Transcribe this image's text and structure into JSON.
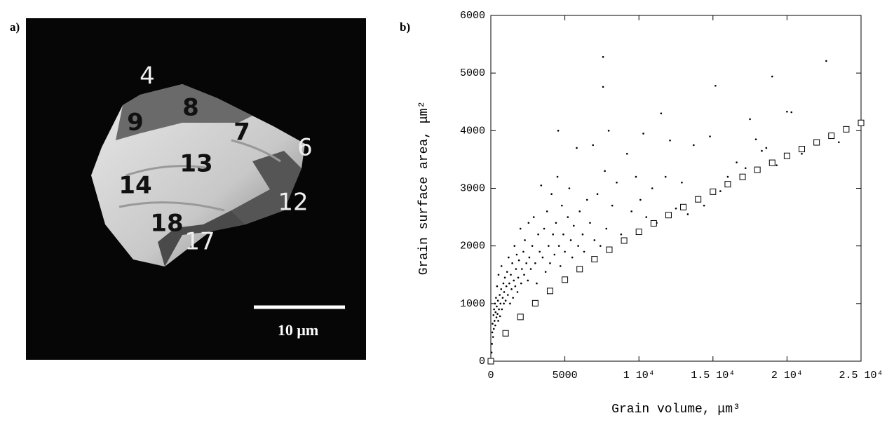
{
  "figure": {
    "panel_a": {
      "label": "a)",
      "regions": [
        "4",
        "8",
        "9",
        "7",
        "6",
        "13",
        "14",
        "12",
        "18",
        "17"
      ],
      "scale_bar": "10 μm"
    },
    "panel_b": {
      "label": "b)"
    }
  },
  "chart_data": {
    "type": "scatter",
    "x_label": "Grain volume,   μm³",
    "y_label": "Grain surface area,  μm²",
    "xlim": [
      0,
      25000
    ],
    "ylim": [
      0,
      6000
    ],
    "xticks": [
      0,
      5000,
      {
        "value": 10000,
        "label": "1 10⁴"
      },
      {
        "value": 15000,
        "label": "1.5 10⁴"
      },
      {
        "value": 20000,
        "label": "2 10⁴"
      },
      {
        "value": 25000,
        "label": "2.5 10⁴"
      }
    ],
    "yticks": [
      0,
      1000,
      2000,
      3000,
      4000,
      5000,
      6000
    ],
    "series": [
      {
        "marker": "dot",
        "color": "#000000",
        "x": [
          50,
          80,
          100,
          120,
          150,
          180,
          200,
          220,
          250,
          280,
          300,
          320,
          350,
          380,
          400,
          420,
          450,
          480,
          500,
          520,
          550,
          600,
          620,
          650,
          700,
          720,
          750,
          800,
          850,
          880,
          900,
          950,
          1000,
          1050,
          1100,
          1150,
          1200,
          1250,
          1300,
          1350,
          1400,
          1450,
          1500,
          1550,
          1600,
          1650,
          1700,
          1750,
          1800,
          1850,
          1900,
          2000,
          2050,
          2100,
          2200,
          2250,
          2300,
          2400,
          2500,
          2550,
          2600,
          2700,
          2800,
          2900,
          3000,
          3100,
          3200,
          3300,
          3400,
          3500,
          3600,
          3700,
          3800,
          3900,
          4000,
          4100,
          4200,
          4300,
          4400,
          4500,
          4550,
          4600,
          4700,
          4800,
          4900,
          5000,
          5200,
          5300,
          5400,
          5500,
          5600,
          5800,
          5900,
          6000,
          6200,
          6300,
          6500,
          6700,
          6900,
          7000,
          7200,
          7400,
          7580,
          7580,
          7700,
          7800,
          7960,
          8200,
          8500,
          8800,
          9200,
          9500,
          9800,
          10100,
          10300,
          10500,
          10900,
          11200,
          11500,
          11800,
          12100,
          12500,
          12900,
          13300,
          13700,
          14000,
          14400,
          14800,
          15170,
          15500,
          16000,
          16600,
          17200,
          17500,
          17900,
          18300,
          18600,
          19000,
          19300,
          20000,
          20300,
          21000,
          22650,
          23500
        ],
        "values": [
          150,
          300,
          500,
          650,
          420,
          800,
          560,
          900,
          700,
          1000,
          620,
          850,
          1100,
          760,
          950,
          1300,
          820,
          1050,
          700,
          1500,
          900,
          1150,
          780,
          1000,
          1250,
          1650,
          900,
          1100,
          1350,
          1000,
          1200,
          1450,
          1050,
          1300,
          1550,
          1150,
          1800,
          1350,
          1000,
          1500,
          1250,
          1700,
          1100,
          1400,
          2000,
          1300,
          1600,
          1850,
          1200,
          1450,
          1750,
          2300,
          1350,
          1600,
          1900,
          1500,
          2100,
          1700,
          1400,
          2400,
          1800,
          1600,
          2000,
          2500,
          1700,
          1350,
          2200,
          1900,
          3050,
          1800,
          2300,
          1550,
          2600,
          2000,
          1700,
          2900,
          2200,
          1850,
          2400,
          3200,
          4000,
          2000,
          1650,
          2700,
          2200,
          1900,
          2500,
          3000,
          2100,
          1800,
          2350,
          3700,
          2000,
          2600,
          2200,
          1900,
          2800,
          2400,
          3750,
          2100,
          2900,
          2000,
          4760,
          5280,
          3300,
          2300,
          4000,
          2700,
          3100,
          2200,
          3600,
          2600,
          3200,
          2800,
          3950,
          2500,
          3000,
          2400,
          4300,
          3200,
          3830,
          2650,
          3100,
          2550,
          3750,
          2850,
          2700,
          3900,
          4780,
          2950,
          3200,
          3450,
          3350,
          4200,
          3850,
          3650,
          3700,
          4940,
          3400,
          4330,
          4320,
          3600,
          5210,
          3800
        ]
      },
      {
        "marker": "square",
        "color": "#000000",
        "x": [
          0,
          1000,
          2000,
          3000,
          4000,
          5000,
          6000,
          7000,
          8000,
          9000,
          10000,
          11000,
          12000,
          13000,
          14000,
          15000,
          16000,
          17000,
          18000,
          19000,
          20000,
          21000,
          22000,
          23000,
          24000,
          25000
        ],
        "values": [
          0,
          484,
          768,
          1006,
          1219,
          1414,
          1597,
          1770,
          1934,
          2093,
          2245,
          2392,
          2535,
          2674,
          2809,
          2941,
          3071,
          3198,
          3321,
          3443,
          3563,
          3681,
          3797,
          3912,
          4024,
          4135
        ]
      }
    ]
  }
}
